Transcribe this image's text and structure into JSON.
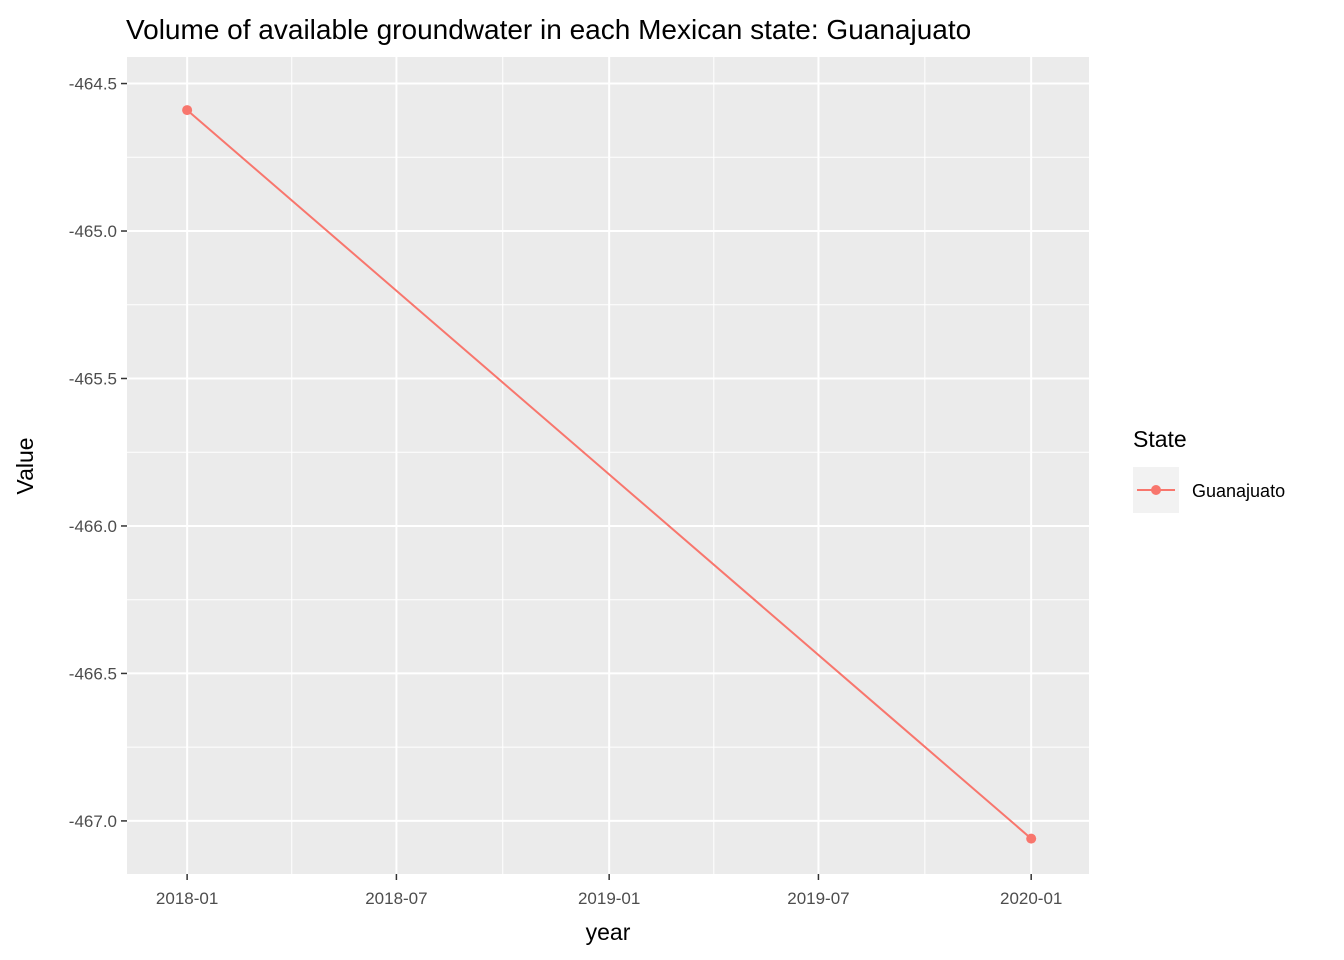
{
  "chart_data": {
    "type": "line",
    "title": "Volume of available groundwater in each Mexican state: Guanajuato",
    "xlabel": "year",
    "ylabel": "Value",
    "x_ticks": [
      "2018-01",
      "2018-07",
      "2019-01",
      "2019-07",
      "2020-01"
    ],
    "y_ticks": [
      "-464.5",
      "-465.0",
      "-465.5",
      "-466.0",
      "-466.5",
      "-467.0"
    ],
    "ylim": [
      -467.18,
      -464.41
    ],
    "xlim": [
      "2017-11-10",
      "2020-02-20"
    ],
    "grid": true,
    "legend": {
      "title": "State",
      "position": "right"
    },
    "series": [
      {
        "name": "Guanajuato",
        "color": "#F8766D",
        "x": [
          "2018-01-01",
          "2020-01-01"
        ],
        "y": [
          -464.59,
          -467.06
        ]
      }
    ]
  }
}
